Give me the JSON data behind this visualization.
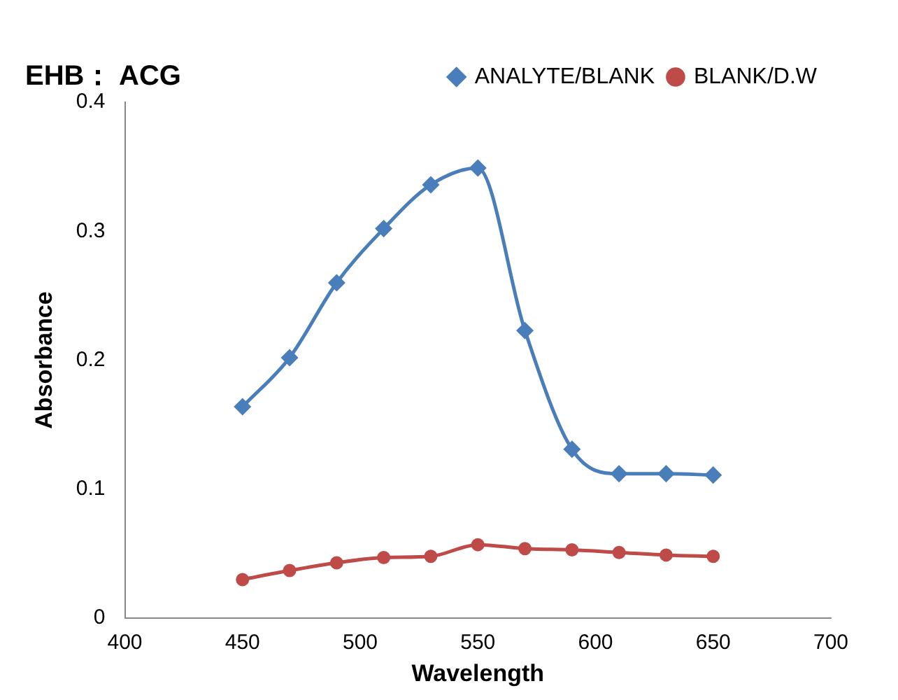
{
  "chart_data": {
    "type": "line",
    "title": "EHB： ACG",
    "xlabel": "Wavelength",
    "ylabel": "Absorbance",
    "x": [
      450,
      470,
      490,
      510,
      530,
      550,
      570,
      590,
      610,
      630,
      650
    ],
    "series": [
      {
        "name": "ANALYTE/BLANK",
        "color": "#4a7ebb",
        "marker": "diamond",
        "values": [
          0.164,
          0.202,
          0.26,
          0.302,
          0.336,
          0.349,
          0.223,
          0.131,
          0.112,
          0.112,
          0.111
        ]
      },
      {
        "name": "BLANK/D.W",
        "color": "#be4b48",
        "marker": "circle",
        "values": [
          0.03,
          0.037,
          0.043,
          0.047,
          0.048,
          0.057,
          0.054,
          0.053,
          0.051,
          0.049,
          0.048
        ]
      }
    ],
    "xlim": [
      400,
      700
    ],
    "xticks": [
      400,
      450,
      500,
      550,
      600,
      650,
      700
    ],
    "ylim": [
      0,
      0.4
    ],
    "yticks": [
      0,
      0.1,
      0.2,
      0.3,
      0.4
    ],
    "grid": false,
    "legend": "top right",
    "line_style": "solid"
  }
}
